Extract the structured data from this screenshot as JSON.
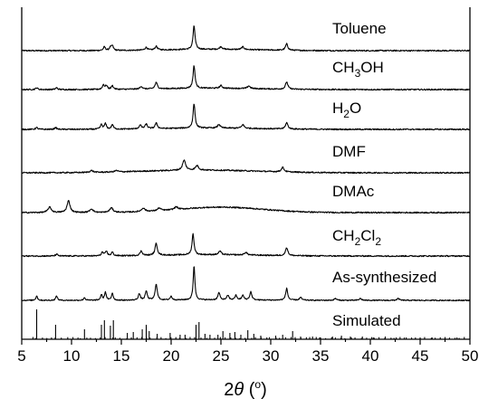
{
  "chart_data": {
    "type": "line",
    "title": "",
    "xlabel": "2θ (°)",
    "xlabel_parts": {
      "main": "2",
      "theta": "θ",
      "open": " (",
      "deg": "o",
      "close": ")"
    },
    "ylabel": "",
    "xlim": [
      5,
      50
    ],
    "xticks": [
      5,
      10,
      15,
      20,
      25,
      30,
      35,
      40,
      45,
      50
    ],
    "grid": false,
    "legend": "labels placed beside each stacked trace (right side)",
    "series": [
      {
        "name": "Toluene",
        "label_parts": [
          {
            "t": "Toluene"
          }
        ],
        "noise": 0.7,
        "hump": {
          "center": 24,
          "width": 7,
          "height": 1.5
        },
        "peaks": [
          [
            13.3,
            4,
            0.12
          ],
          [
            13.9,
            3,
            0.12
          ],
          [
            14.1,
            5,
            0.12
          ],
          [
            17.5,
            3,
            0.14
          ],
          [
            18.5,
            4,
            0.14
          ],
          [
            22.3,
            26,
            0.12
          ],
          [
            25.0,
            3,
            0.15
          ],
          [
            27.2,
            3,
            0.15
          ],
          [
            31.6,
            7,
            0.14
          ]
        ]
      },
      {
        "name": "CH3OH",
        "label_parts": [
          {
            "t": "CH"
          },
          {
            "t": "3",
            "sub": true
          },
          {
            "t": "OH"
          }
        ],
        "noise": 0.7,
        "hump": {
          "center": 24,
          "width": 7,
          "height": 1.5
        },
        "peaks": [
          [
            6.5,
            2,
            0.12
          ],
          [
            8.5,
            2,
            0.12
          ],
          [
            13.2,
            5,
            0.12
          ],
          [
            13.5,
            4,
            0.12
          ],
          [
            14.1,
            4,
            0.12
          ],
          [
            17.0,
            3,
            0.14
          ],
          [
            18.5,
            7,
            0.14
          ],
          [
            22.3,
            25,
            0.12
          ],
          [
            25.0,
            3,
            0.15
          ],
          [
            27.8,
            3,
            0.15
          ],
          [
            31.6,
            8,
            0.14
          ]
        ]
      },
      {
        "name": "H2O",
        "label_parts": [
          {
            "t": "H"
          },
          {
            "t": "2",
            "sub": true
          },
          {
            "t": "O"
          }
        ],
        "noise": 0.7,
        "hump": {
          "center": 24,
          "width": 7,
          "height": 1.5
        },
        "peaks": [
          [
            6.5,
            2,
            0.12
          ],
          [
            8.4,
            2,
            0.12
          ],
          [
            13.0,
            5,
            0.12
          ],
          [
            13.4,
            6,
            0.12
          ],
          [
            14.1,
            5,
            0.12
          ],
          [
            16.9,
            4,
            0.14
          ],
          [
            17.5,
            5,
            0.14
          ],
          [
            18.5,
            6,
            0.14
          ],
          [
            22.3,
            27,
            0.12
          ],
          [
            24.8,
            4,
            0.15
          ],
          [
            27.2,
            4,
            0.15
          ],
          [
            31.6,
            7,
            0.14
          ]
        ]
      },
      {
        "name": "DMF",
        "label_parts": [
          {
            "t": "DMF"
          }
        ],
        "noise": 0.7,
        "hump": {
          "center": 23,
          "width": 8,
          "height": 3
        },
        "peaks": [
          [
            12.0,
            2,
            0.2
          ],
          [
            14.5,
            1.5,
            0.2
          ],
          [
            21.3,
            11,
            0.18
          ],
          [
            22.6,
            5,
            0.18
          ],
          [
            31.2,
            5,
            0.16
          ]
        ]
      },
      {
        "name": "DMAc",
        "label_parts": [
          {
            "t": "DMAc"
          }
        ],
        "noise": 0.7,
        "hump": {
          "center": 25,
          "width": 6,
          "height": 6
        },
        "peaks": [
          [
            7.8,
            6,
            0.2
          ],
          [
            9.7,
            13,
            0.18
          ],
          [
            12.0,
            4,
            0.2
          ],
          [
            14.0,
            5,
            0.2
          ],
          [
            17.2,
            4,
            0.2
          ],
          [
            18.8,
            3,
            0.2
          ],
          [
            20.5,
            3,
            0.2
          ]
        ]
      },
      {
        "name": "CH2Cl2",
        "label_parts": [
          {
            "t": "CH"
          },
          {
            "t": "2",
            "sub": true
          },
          {
            "t": "Cl"
          },
          {
            "t": "2",
            "sub": true
          }
        ],
        "noise": 0.7,
        "hump": {
          "center": 24,
          "width": 7,
          "height": 1.5
        },
        "peaks": [
          [
            8.5,
            2,
            0.12
          ],
          [
            13.1,
            4,
            0.12
          ],
          [
            13.5,
            5,
            0.12
          ],
          [
            14.1,
            4,
            0.12
          ],
          [
            17.0,
            5,
            0.14
          ],
          [
            18.5,
            13,
            0.14
          ],
          [
            22.2,
            23,
            0.12
          ],
          [
            24.9,
            4,
            0.15
          ],
          [
            27.5,
            3,
            0.15
          ],
          [
            31.6,
            9,
            0.14
          ]
        ]
      },
      {
        "name": "As-synthesized",
        "label_parts": [
          {
            "t": "As-synthesized"
          }
        ],
        "noise": 0.6,
        "hump": {
          "center": 24,
          "width": 7,
          "height": 0.5
        },
        "peaks": [
          [
            6.5,
            5,
            0.1
          ],
          [
            8.5,
            5,
            0.1
          ],
          [
            11.3,
            3,
            0.1
          ],
          [
            13.0,
            6,
            0.1
          ],
          [
            13.4,
            9,
            0.1
          ],
          [
            14.1,
            8,
            0.1
          ],
          [
            16.8,
            7,
            0.12
          ],
          [
            17.5,
            10,
            0.12
          ],
          [
            18.5,
            18,
            0.12
          ],
          [
            20.0,
            4,
            0.12
          ],
          [
            22.3,
            38,
            0.1
          ],
          [
            24.8,
            8,
            0.12
          ],
          [
            25.7,
            5,
            0.12
          ],
          [
            26.5,
            5,
            0.12
          ],
          [
            27.2,
            5,
            0.12
          ],
          [
            28.0,
            9,
            0.12
          ],
          [
            31.6,
            13,
            0.12
          ],
          [
            33.0,
            3,
            0.14
          ],
          [
            36.5,
            2,
            0.14
          ],
          [
            39.0,
            2,
            0.14
          ],
          [
            42.8,
            2,
            0.14
          ]
        ]
      }
    ],
    "simulated": {
      "name": "Simulated",
      "label_parts": [
        {
          "t": "Simulated"
        }
      ],
      "peaks": [
        [
          6.5,
          33
        ],
        [
          8.4,
          16
        ],
        [
          11.3,
          11
        ],
        [
          13.0,
          16
        ],
        [
          13.3,
          21
        ],
        [
          13.9,
          15
        ],
        [
          14.2,
          21
        ],
        [
          15.6,
          7
        ],
        [
          16.2,
          8
        ],
        [
          17.1,
          11
        ],
        [
          17.5,
          16
        ],
        [
          17.8,
          9
        ],
        [
          18.6,
          6
        ],
        [
          19.9,
          7
        ],
        [
          20.9,
          5
        ],
        [
          21.4,
          5
        ],
        [
          22.5,
          16
        ],
        [
          22.8,
          19
        ],
        [
          23.4,
          6
        ],
        [
          23.9,
          5
        ],
        [
          24.7,
          5
        ],
        [
          25.2,
          9
        ],
        [
          25.9,
          7
        ],
        [
          26.4,
          8
        ],
        [
          27.0,
          5
        ],
        [
          27.7,
          10
        ],
        [
          28.3,
          6
        ],
        [
          29.0,
          4
        ],
        [
          30.5,
          4
        ],
        [
          31.2,
          5
        ],
        [
          32.2,
          9
        ],
        [
          33.0,
          3
        ],
        [
          34.2,
          3
        ],
        [
          35.0,
          2
        ],
        [
          36.2,
          3
        ],
        [
          37.1,
          4
        ],
        [
          38.0,
          3
        ],
        [
          39.2,
          3
        ],
        [
          40.3,
          2
        ],
        [
          41.5,
          3
        ],
        [
          42.6,
          2
        ],
        [
          43.6,
          2
        ],
        [
          45.0,
          2
        ],
        [
          46.2,
          2
        ],
        [
          47.5,
          2
        ],
        [
          48.7,
          2
        ]
      ]
    }
  }
}
